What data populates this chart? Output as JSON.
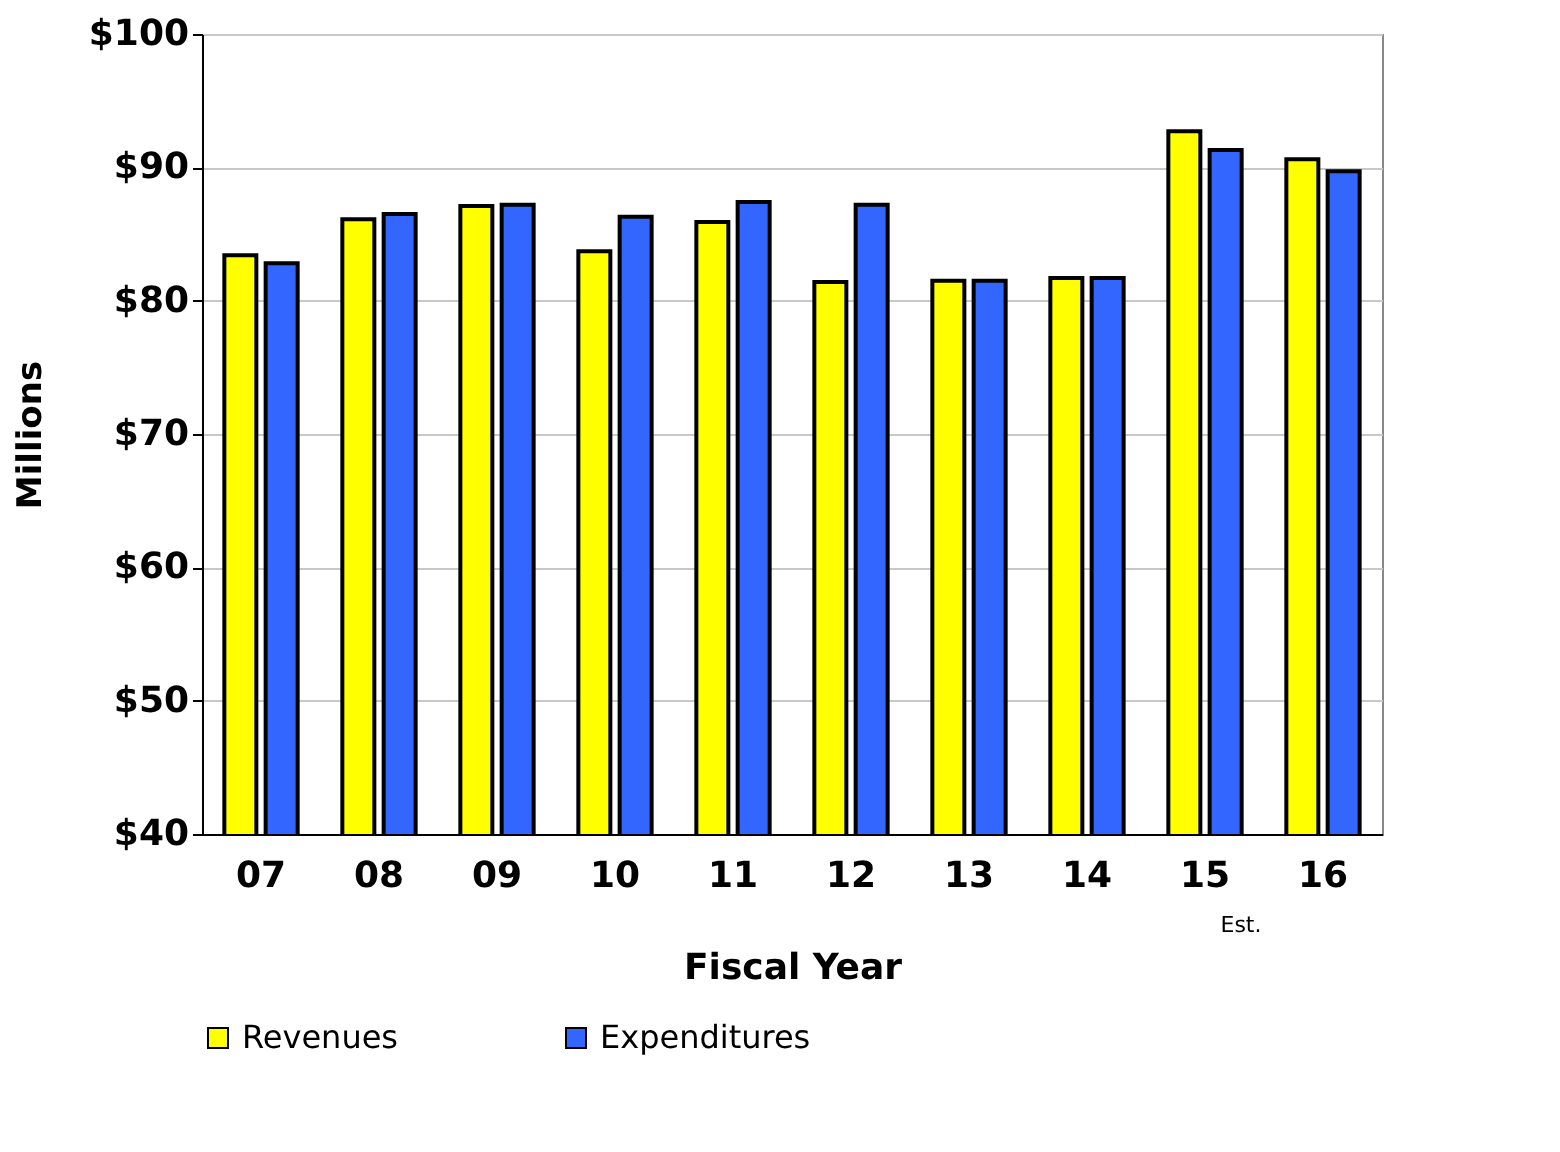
{
  "chart_data": {
    "type": "bar",
    "xlabel": "Fiscal Year",
    "ylabel": "Millions",
    "categories": [
      "07",
      "08",
      "09",
      "10",
      "11",
      "12",
      "13",
      "14",
      "15",
      "16"
    ],
    "series": [
      {
        "name": "Revenues",
        "color": "#ffff00",
        "values": [
          83.4,
          86.1,
          87.1,
          83.7,
          85.9,
          81.4,
          81.5,
          81.7,
          92.7,
          90.6
        ]
      },
      {
        "name": "Expenditures",
        "color": "#3366ff",
        "values": [
          82.8,
          86.5,
          87.2,
          86.3,
          87.4,
          87.2,
          81.5,
          81.7,
          91.3,
          89.7
        ]
      }
    ],
    "ylim": [
      40,
      100
    ],
    "yticks": [
      {
        "value": 40,
        "label": "$40"
      },
      {
        "value": 50,
        "label": "$50"
      },
      {
        "value": 60,
        "label": "$60"
      },
      {
        "value": 70,
        "label": "$70"
      },
      {
        "value": 80,
        "label": "$80"
      },
      {
        "value": 90,
        "label": "$90"
      },
      {
        "value": 100,
        "label": "$100"
      }
    ],
    "grid": "y",
    "legend": "bottom",
    "annotations": [
      {
        "text": "Est.",
        "x": "15"
      }
    ]
  }
}
